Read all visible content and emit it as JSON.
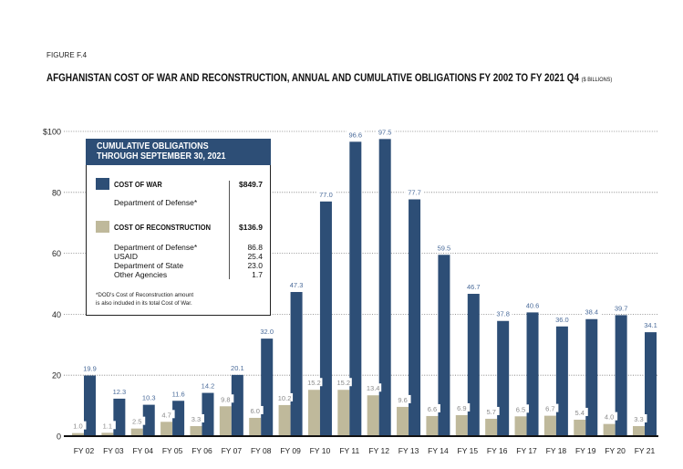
{
  "figure_label": "FIGURE F.4",
  "title": "AFGHANISTAN COST OF WAR AND RECONSTRUCTION, ANNUAL AND CUMULATIVE OBLIGATIONS FY 2002 TO FY 2021 Q4",
  "title_unit": "($ BILLIONS)",
  "colors": {
    "war": "#2d4e76",
    "reconstruction": "#bfb99b",
    "war_label": "#4a6b9a",
    "recon_label": "#8a8a8a"
  },
  "legend": {
    "header_line1": "CUMULATIVE OBLIGATIONS",
    "header_line2": "THROUGH SEPTEMBER 30, 2021",
    "war": {
      "label": "COST OF WAR",
      "total": "$849.7",
      "items": [
        {
          "name": "Department of Defense*",
          "value": ""
        }
      ]
    },
    "reconstruction": {
      "label": "COST OF RECONSTRUCTION",
      "total": "$136.9",
      "items": [
        {
          "name": "Department of Defense*",
          "value": "86.8"
        },
        {
          "name": "USAID",
          "value": "25.4"
        },
        {
          "name": "Department of State",
          "value": "23.0"
        },
        {
          "name": "Other Agencies",
          "value": "1.7"
        }
      ]
    },
    "note_line1": "*DOD's Cost of Reconstruction amount",
    "note_line2": "is also included in its total Cost of War."
  },
  "chart_data": {
    "type": "bar",
    "title": "AFGHANISTAN COST OF WAR AND RECONSTRUCTION, ANNUAL AND CUMULATIVE OBLIGATIONS FY 2002 TO FY 2021 Q4 ($ BILLIONS)",
    "xlabel": "",
    "ylabel": "$ billions",
    "ylim": [
      0,
      100
    ],
    "yticks": [
      0,
      20,
      40,
      60,
      80,
      100
    ],
    "ytick_labels": [
      "0",
      "20",
      "40",
      "60",
      "80",
      "$100"
    ],
    "grid": "horizontal dotted",
    "categories": [
      "FY 02",
      "FY 03",
      "FY 04",
      "FY 05",
      "FY 06",
      "FY 07",
      "FY 08",
      "FY 09",
      "FY 10",
      "FY 11",
      "FY 12",
      "FY 13",
      "FY 14",
      "FY 15",
      "FY 16",
      "FY 17",
      "FY 18",
      "FY 19",
      "FY 20",
      "FY 21"
    ],
    "series": [
      {
        "name": "Cost of Reconstruction",
        "values": [
          1.0,
          1.1,
          2.5,
          4.7,
          3.3,
          9.8,
          6.0,
          10.2,
          15.2,
          15.2,
          13.4,
          9.6,
          6.6,
          6.9,
          5.7,
          6.5,
          6.7,
          5.4,
          4.0,
          3.3
        ]
      },
      {
        "name": "Cost of War",
        "values": [
          19.9,
          12.3,
          10.3,
          11.6,
          14.2,
          20.1,
          32.0,
          47.3,
          77.0,
          96.6,
          97.5,
          77.7,
          59.5,
          46.7,
          37.8,
          40.6,
          36.0,
          38.4,
          39.7,
          34.1
        ]
      }
    ],
    "legend_position": "top-left inset"
  }
}
